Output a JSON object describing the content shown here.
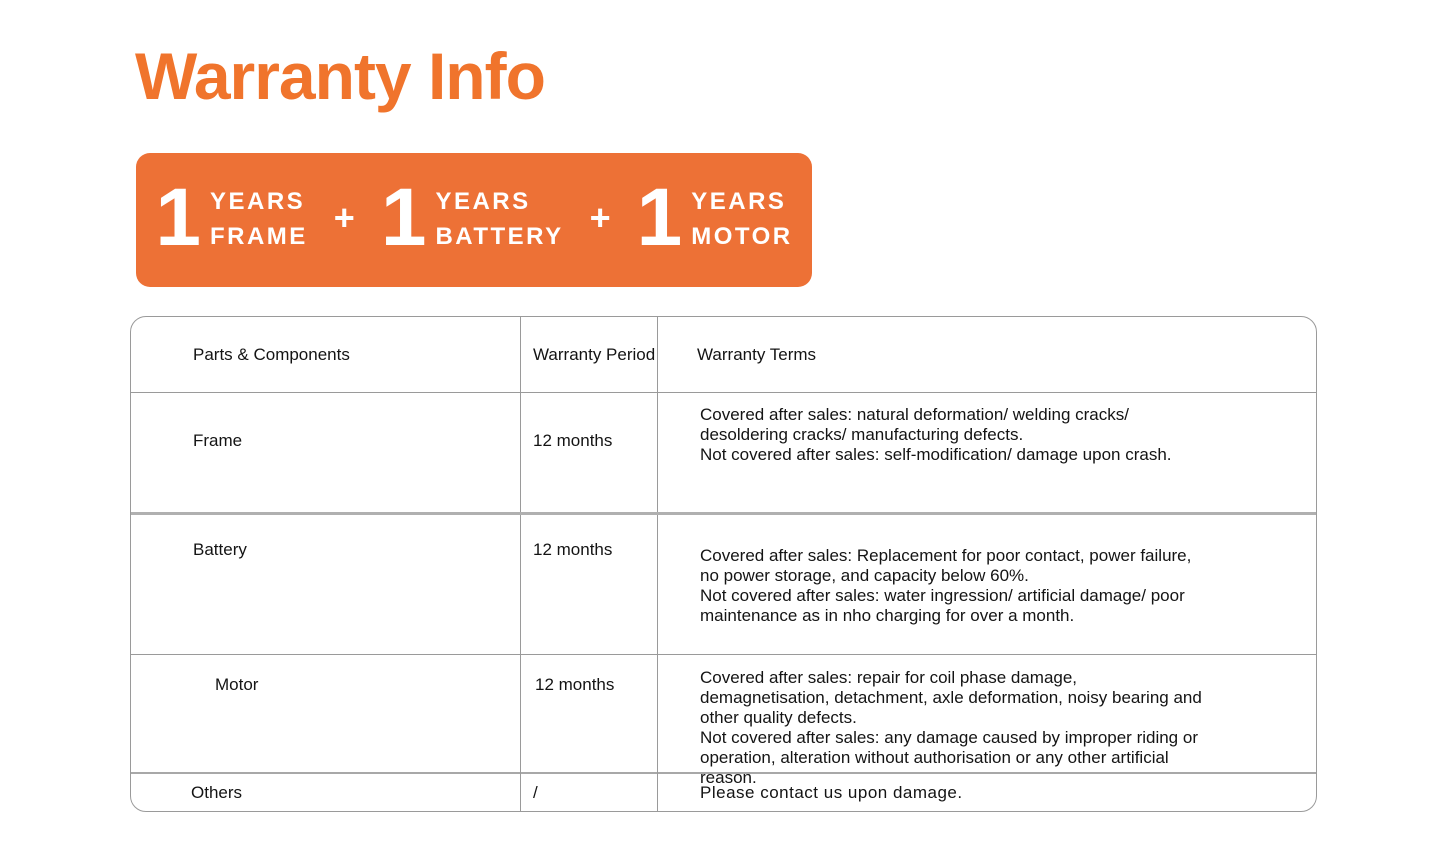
{
  "page": {
    "title": "Warranty Info"
  },
  "banner": {
    "separator": "+",
    "background_color": "#ED7136",
    "text_color": "#FFFFFF",
    "items": [
      {
        "years": "1",
        "line1": "YEARS",
        "line2": "FRAME"
      },
      {
        "years": "1",
        "line1": "YEARS",
        "line2": "BATTERY"
      },
      {
        "years": "1",
        "line1": "YEARS",
        "line2": "MOTOR"
      }
    ]
  },
  "table": {
    "headers": [
      "Parts & Components",
      "Warranty Period",
      "Warranty Terms"
    ],
    "rows": [
      {
        "part": "Frame",
        "period": "12 months",
        "terms": "Covered after sales: natural deformation/ welding cracks/ desoldering cracks/ manufacturing defects.\nNot covered after sales: self-modification/ damage upon crash."
      },
      {
        "part": "Battery",
        "period": "12 months",
        "terms": "Covered after sales: Replacement for poor contact, power failure, no power storage, and capacity below 60%.\nNot covered after sales: water ingression/ artificial damage/ poor maintenance as in nho charging for over a month."
      },
      {
        "part": "Motor",
        "period": "12 months",
        "terms": "Covered after sales:  repair for coil phase damage, demagnetisation, detachment, axle deformation, noisy bearing and other quality defects.\nNot covered after sales: any damage caused by improper riding or operation, alteration without authorisation or any other artificial reason."
      },
      {
        "part": "Others",
        "period": "/",
        "terms": "Please contact us upon damage."
      }
    ]
  },
  "colors": {
    "title_orange": "#F0742C",
    "banner_orange": "#ED7136",
    "border_gray": "#9A9A9A",
    "thick_border_gray": "#B0B0B0",
    "text_black": "#141414"
  }
}
